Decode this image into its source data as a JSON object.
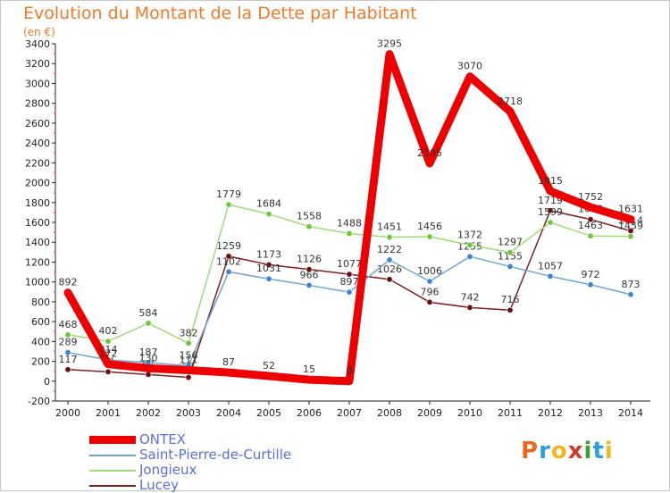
{
  "header": {
    "title": "Evolution du Montant de la Dette par Habitant",
    "subtitle": "(en €)"
  },
  "chart_data": {
    "type": "line",
    "title": "Evolution du Montant de la Dette par Habitant",
    "ylabel": "(en €)",
    "xlabel": "",
    "categories": [
      "2000",
      "2001",
      "2002",
      "2003",
      "2004",
      "2005",
      "2006",
      "2007",
      "2008",
      "2009",
      "2010",
      "2011",
      "2012",
      "2013",
      "2014"
    ],
    "ylim": [
      -200,
      3400
    ],
    "yticks": [
      -200,
      0,
      200,
      400,
      600,
      800,
      1000,
      1200,
      1400,
      1600,
      1800,
      2000,
      2200,
      2400,
      2600,
      2800,
      3000,
      3200,
      3400
    ],
    "grid": false,
    "legend_position": "bottom-left",
    "series": [
      {
        "name": "Lucey",
        "color": "#7a2020",
        "marker": "#6b1010",
        "width": 1.5,
        "values": [
          117,
          94,
          67,
          38,
          1259,
          1173,
          1126,
          1077,
          1026,
          796,
          742,
          716,
          1719,
          1630,
          1514
        ]
      },
      {
        "name": "Saint-Pierre-de-Curtille",
        "color": "#6ea4d4",
        "marker": "#3a87d0",
        "width": 1.5,
        "values": [
          289,
          214,
          187,
          156,
          1102,
          1031,
          966,
          897,
          1222,
          1006,
          1255,
          1155,
          1057,
          972,
          873
        ]
      },
      {
        "name": "Jongieux",
        "color": "#9edb77",
        "marker": "#6cc83a",
        "width": 1.5,
        "values": [
          468,
          402,
          584,
          382,
          1779,
          1684,
          1558,
          1488,
          1451,
          1456,
          1372,
          1297,
          1599,
          1463,
          1459
        ]
      },
      {
        "name": "ONTEX",
        "color": "#ee0000",
        "marker": "#ee0000",
        "width": 9,
        "values": [
          892,
          172,
          130,
          111,
          87,
          52,
          15,
          0,
          3295,
          2195,
          3070,
          2718,
          1915,
          1752,
          1631
        ]
      }
    ],
    "legend": [
      "ONTEX",
      "Saint-Pierre-de-Curtille",
      "Jongieux",
      "Lucey"
    ]
  },
  "logo": {
    "text": "Proxiti",
    "letters": [
      "P",
      "r",
      "o",
      "x",
      "i",
      "t",
      "i"
    ],
    "colors": [
      "#e86a1f",
      "#2aa0e0",
      "#f0b61e",
      "#d23a2a",
      "#3aa03a",
      "#2aa0e0",
      "#f0b61e"
    ]
  }
}
